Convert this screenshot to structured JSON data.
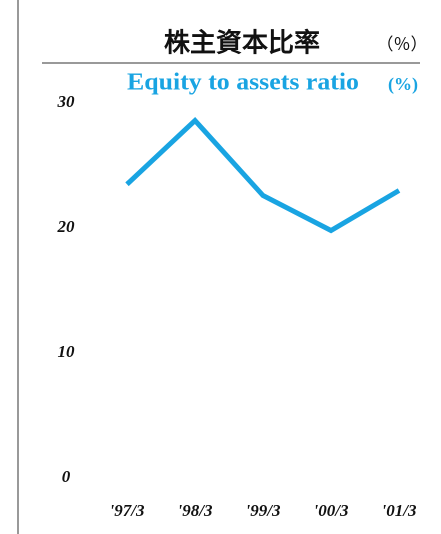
{
  "chart_data": {
    "type": "line",
    "title": "株主資本比率",
    "title_unit": "（％）",
    "subtitle": "Equity to assets ratio",
    "subtitle_unit": "(%)",
    "categories": [
      "'97/3",
      "'98/3",
      "'99/3",
      "'00/3",
      "'01/3"
    ],
    "values": [
      23.5,
      28.6,
      22.6,
      19.8,
      23.0
    ],
    "color": "#19a4e2",
    "ylim": [
      0,
      30
    ],
    "yticks": [
      0,
      10,
      20,
      30
    ],
    "grid": false
  }
}
